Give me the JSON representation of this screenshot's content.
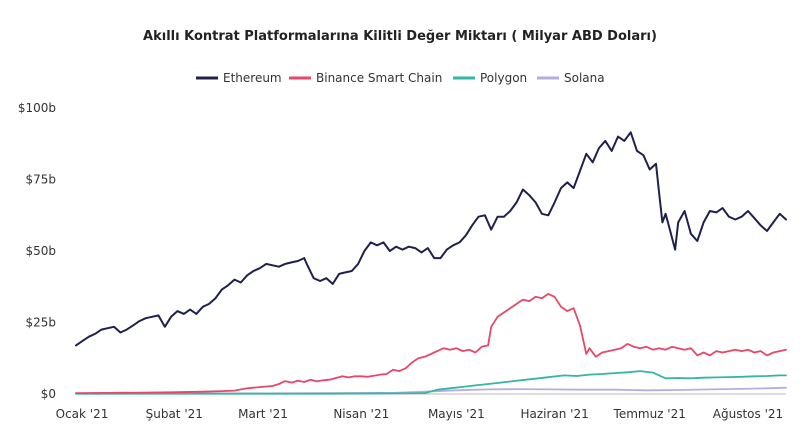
{
  "chart_data": {
    "type": "line",
    "title": "Akıllı Kontrat Platformalarına Kilitli Değer Miktarı ( Milyar ABD Doları)",
    "xlabel": "",
    "ylabel": "",
    "ylim": [
      0,
      100
    ],
    "y_ticks": [
      0,
      25,
      50,
      75,
      100
    ],
    "y_tick_labels": [
      "$0",
      "$25b",
      "$50b",
      "$75b",
      "$100b"
    ],
    "x_ticks": [
      0,
      31,
      59,
      90,
      120,
      151,
      181,
      212
    ],
    "x_tick_labels": [
      "Ocak '21",
      "Şubat '21",
      "Mart '21",
      "Nisan '21",
      "Mayıs '21",
      "Haziran '21",
      "Temmuz '21",
      "Ağustos '21"
    ],
    "x_range": [
      0,
      224
    ],
    "grid": false,
    "legend_position": "top-center",
    "series": [
      {
        "name": "Ethereum",
        "color": "#20204f",
        "points": [
          [
            0,
            17
          ],
          [
            2,
            18.5
          ],
          [
            4,
            20
          ],
          [
            6,
            21
          ],
          [
            8,
            22.5
          ],
          [
            10,
            23
          ],
          [
            12,
            23.5
          ],
          [
            14,
            21.5
          ],
          [
            16,
            22.5
          ],
          [
            18,
            24
          ],
          [
            20,
            25.5
          ],
          [
            22,
            26.5
          ],
          [
            24,
            27
          ],
          [
            26,
            27.5
          ],
          [
            28,
            23.5
          ],
          [
            30,
            27
          ],
          [
            32,
            29
          ],
          [
            34,
            28
          ],
          [
            36,
            29.5
          ],
          [
            38,
            28
          ],
          [
            40,
            30.5
          ],
          [
            42,
            31.5
          ],
          [
            44,
            33.5
          ],
          [
            46,
            36.5
          ],
          [
            48,
            38
          ],
          [
            50,
            40
          ],
          [
            52,
            39
          ],
          [
            54,
            41.5
          ],
          [
            56,
            43
          ],
          [
            58,
            44
          ],
          [
            60,
            45.5
          ],
          [
            62,
            45
          ],
          [
            64,
            44.5
          ],
          [
            66,
            45.5
          ],
          [
            68,
            46
          ],
          [
            70,
            46.5
          ],
          [
            72,
            47.5
          ],
          [
            73,
            45
          ],
          [
            75,
            40.5
          ],
          [
            77,
            39.5
          ],
          [
            79,
            40.5
          ],
          [
            81,
            38.5
          ],
          [
            83,
            42
          ],
          [
            85,
            42.5
          ],
          [
            87,
            43
          ],
          [
            89,
            45.5
          ],
          [
            91,
            50
          ],
          [
            93,
            53
          ],
          [
            95,
            52
          ],
          [
            97,
            53
          ],
          [
            99,
            50
          ],
          [
            101,
            51.5
          ],
          [
            103,
            50.5
          ],
          [
            105,
            51.5
          ],
          [
            107,
            51
          ],
          [
            109,
            49.5
          ],
          [
            111,
            51
          ],
          [
            113,
            47.5
          ],
          [
            115,
            47.5
          ],
          [
            117,
            50.5
          ],
          [
            119,
            52
          ],
          [
            121,
            53
          ],
          [
            123,
            55.5
          ],
          [
            125,
            59
          ],
          [
            127,
            62
          ],
          [
            129,
            62.5
          ],
          [
            131,
            57.5
          ],
          [
            133,
            62
          ],
          [
            135,
            62
          ],
          [
            137,
            64
          ],
          [
            139,
            67
          ],
          [
            141,
            71.5
          ],
          [
            143,
            69.5
          ],
          [
            145,
            67
          ],
          [
            147,
            63
          ],
          [
            149,
            62.5
          ],
          [
            151,
            67
          ],
          [
            153,
            72
          ],
          [
            155,
            74
          ],
          [
            157,
            72
          ],
          [
            159,
            78
          ],
          [
            161,
            84
          ],
          [
            163,
            81
          ],
          [
            165,
            86
          ],
          [
            167,
            88.5
          ],
          [
            169,
            85
          ],
          [
            171,
            90
          ],
          [
            173,
            88.5
          ],
          [
            175,
            91.5
          ],
          [
            177,
            85
          ],
          [
            179,
            83.5
          ],
          [
            181,
            78.5
          ],
          [
            183,
            80.5
          ],
          [
            184,
            70
          ],
          [
            185,
            60
          ],
          [
            186,
            63
          ],
          [
            187,
            59
          ],
          [
            189,
            50.5
          ],
          [
            190,
            60
          ],
          [
            192,
            64
          ],
          [
            194,
            56
          ],
          [
            196,
            53.5
          ],
          [
            198,
            60
          ],
          [
            200,
            64
          ],
          [
            202,
            63.5
          ],
          [
            204,
            65
          ],
          [
            206,
            62
          ],
          [
            208,
            61
          ],
          [
            210,
            62
          ],
          [
            212,
            64
          ],
          [
            214,
            61.5
          ],
          [
            216,
            59
          ],
          [
            218,
            57
          ],
          [
            220,
            60
          ],
          [
            222,
            63
          ],
          [
            224,
            61
          ]
        ]
      },
      {
        "name": "Binance Smart Chain",
        "color": "#e8476a",
        "points": [
          [
            0,
            0.3
          ],
          [
            10,
            0.4
          ],
          [
            20,
            0.5
          ],
          [
            30,
            0.6
          ],
          [
            40,
            0.8
          ],
          [
            46,
            1.0
          ],
          [
            50,
            1.2
          ],
          [
            54,
            2.0
          ],
          [
            58,
            2.4
          ],
          [
            62,
            2.8
          ],
          [
            64,
            3.5
          ],
          [
            66,
            4.5
          ],
          [
            68,
            4.0
          ],
          [
            70,
            4.6
          ],
          [
            72,
            4.2
          ],
          [
            74,
            5.0
          ],
          [
            76,
            4.4
          ],
          [
            78,
            4.8
          ],
          [
            80,
            5.0
          ],
          [
            82,
            5.6
          ],
          [
            84,
            6.2
          ],
          [
            86,
            5.8
          ],
          [
            88,
            6.2
          ],
          [
            90,
            6.2
          ],
          [
            92,
            6.0
          ],
          [
            94,
            6.4
          ],
          [
            96,
            6.8
          ],
          [
            98,
            7.0
          ],
          [
            100,
            8.5
          ],
          [
            102,
            8.0
          ],
          [
            104,
            9.0
          ],
          [
            106,
            11.0
          ],
          [
            108,
            12.5
          ],
          [
            110,
            13.0
          ],
          [
            112,
            14.0
          ],
          [
            114,
            15.0
          ],
          [
            116,
            16.0
          ],
          [
            118,
            15.5
          ],
          [
            120,
            16.0
          ],
          [
            122,
            15.0
          ],
          [
            124,
            15.5
          ],
          [
            126,
            14.5
          ],
          [
            128,
            16.5
          ],
          [
            130,
            17.0
          ],
          [
            131,
            23.5
          ],
          [
            133,
            27
          ],
          [
            135,
            28.5
          ],
          [
            137,
            30
          ],
          [
            139,
            31.5
          ],
          [
            141,
            33
          ],
          [
            143,
            32.5
          ],
          [
            145,
            34
          ],
          [
            147,
            33.5
          ],
          [
            149,
            35
          ],
          [
            151,
            34
          ],
          [
            153,
            30.5
          ],
          [
            155,
            29
          ],
          [
            157,
            30
          ],
          [
            159,
            24
          ],
          [
            161,
            14
          ],
          [
            162,
            16
          ],
          [
            164,
            13
          ],
          [
            166,
            14.5
          ],
          [
            168,
            15
          ],
          [
            170,
            15.5
          ],
          [
            172,
            16
          ],
          [
            174,
            17.5
          ],
          [
            176,
            16.5
          ],
          [
            178,
            16
          ],
          [
            180,
            16.5
          ],
          [
            182,
            15.5
          ],
          [
            184,
            16
          ],
          [
            186,
            15.5
          ],
          [
            188,
            16.5
          ],
          [
            190,
            16
          ],
          [
            192,
            15.5
          ],
          [
            194,
            16
          ],
          [
            196,
            13.5
          ],
          [
            198,
            14.5
          ],
          [
            200,
            13.5
          ],
          [
            202,
            15
          ],
          [
            204,
            14.5
          ],
          [
            206,
            15
          ],
          [
            208,
            15.5
          ],
          [
            210,
            15
          ],
          [
            212,
            15.5
          ],
          [
            214,
            14.5
          ],
          [
            216,
            15
          ],
          [
            218,
            13.5
          ],
          [
            220,
            14.5
          ],
          [
            222,
            15
          ],
          [
            224,
            15.5
          ]
        ]
      },
      {
        "name": "Polygon",
        "color": "#35b5a5",
        "points": [
          [
            0,
            0.1
          ],
          [
            40,
            0.1
          ],
          [
            80,
            0.1
          ],
          [
            100,
            0.2
          ],
          [
            110,
            0.3
          ],
          [
            114,
            1.5
          ],
          [
            118,
            2.0
          ],
          [
            122,
            2.5
          ],
          [
            126,
            3.0
          ],
          [
            130,
            3.5
          ],
          [
            134,
            4.0
          ],
          [
            138,
            4.5
          ],
          [
            142,
            5.0
          ],
          [
            146,
            5.5
          ],
          [
            150,
            6.0
          ],
          [
            154,
            6.5
          ],
          [
            158,
            6.3
          ],
          [
            162,
            6.8
          ],
          [
            166,
            7.0
          ],
          [
            170,
            7.3
          ],
          [
            174,
            7.6
          ],
          [
            178,
            8.0
          ],
          [
            182,
            7.5
          ],
          [
            184,
            6.5
          ],
          [
            186,
            5.5
          ],
          [
            190,
            5.6
          ],
          [
            194,
            5.5
          ],
          [
            198,
            5.7
          ],
          [
            202,
            5.8
          ],
          [
            206,
            5.9
          ],
          [
            210,
            6.0
          ],
          [
            214,
            6.2
          ],
          [
            218,
            6.3
          ],
          [
            222,
            6.5
          ],
          [
            224,
            6.5
          ]
        ]
      },
      {
        "name": "Solana",
        "color": "#b5aee0",
        "points": [
          [
            0,
            0.1
          ],
          [
            60,
            0.2
          ],
          [
            100,
            0.4
          ],
          [
            110,
            0.8
          ],
          [
            120,
            1.3
          ],
          [
            130,
            1.6
          ],
          [
            140,
            1.7
          ],
          [
            150,
            1.6
          ],
          [
            160,
            1.5
          ],
          [
            170,
            1.5
          ],
          [
            180,
            1.3
          ],
          [
            190,
            1.4
          ],
          [
            200,
            1.6
          ],
          [
            210,
            1.8
          ],
          [
            218,
            2.0
          ],
          [
            224,
            2.2
          ]
        ]
      }
    ]
  }
}
